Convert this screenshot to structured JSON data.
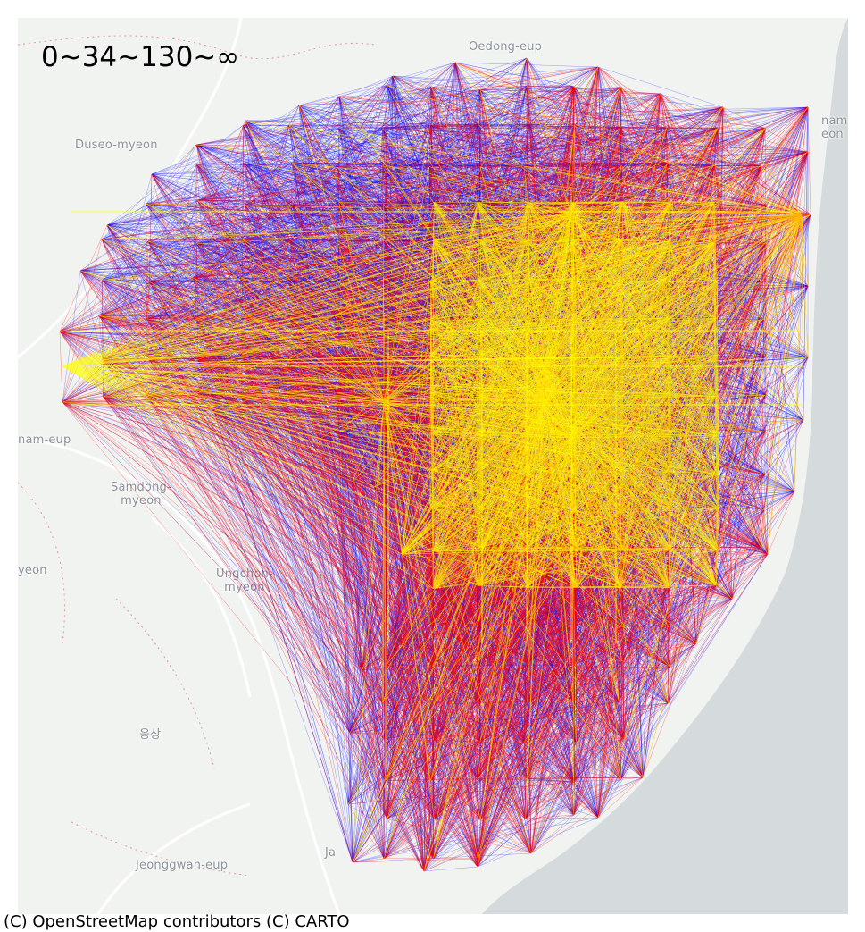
{
  "map": {
    "legend_title": "0~34~130~∞",
    "attribution": "(C) OpenStreetMap contributors (C) CARTO",
    "place_labels": [
      {
        "id": "oedong-eup",
        "text": "Oedong-eup"
      },
      {
        "id": "duseo-myeon",
        "text": "Duseo-myeon"
      },
      {
        "id": "nam-eup-left",
        "text": "nam-eup"
      },
      {
        "id": "samdong-myeon",
        "text": "Samdong-\nmyeon"
      },
      {
        "id": "yeon-left",
        "text": "yeon"
      },
      {
        "id": "ungchon-myeon",
        "text": "Ungchon-\nmyeon"
      },
      {
        "id": "ungsang",
        "text": "웅상"
      },
      {
        "id": "jeonggwan-eup",
        "text": "Jeonggwan-eup"
      },
      {
        "id": "ja-fragment",
        "text": "Ja"
      },
      {
        "id": "gangdong-fragment",
        "text": "nam\neon"
      }
    ],
    "flow_classes": [
      {
        "range": "0~34",
        "color": "#0000ff"
      },
      {
        "range": "34~130",
        "color": "#ff0000"
      },
      {
        "range": "130~∞",
        "color": "#ffff00"
      }
    ],
    "colors": {
      "land": "#f1f3f1",
      "sea": "#d5dadc",
      "roads": "#ffffff",
      "boundaries": "#e39a9a"
    }
  }
}
